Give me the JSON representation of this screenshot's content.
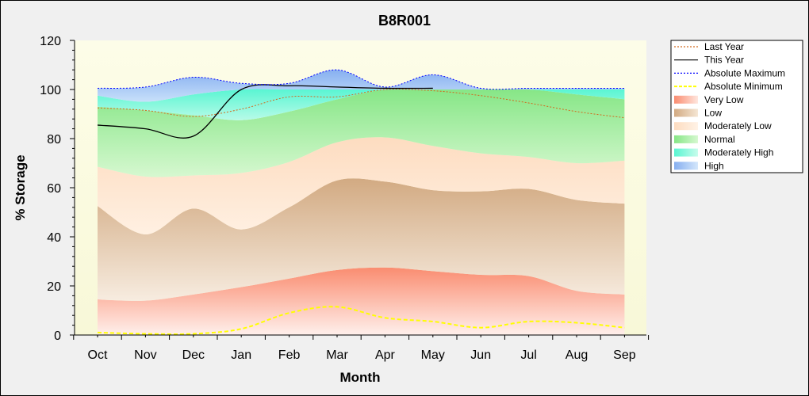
{
  "chart_data": {
    "type": "area",
    "title": "B8R001",
    "xlabel": "Month",
    "ylabel": "% Storage",
    "ylim": [
      0,
      120
    ],
    "yticks": [
      0,
      20,
      40,
      60,
      80,
      100,
      120
    ],
    "categories": [
      "Oct",
      "Nov",
      "Dec",
      "Jan",
      "Feb",
      "Mar",
      "Apr",
      "May",
      "Jun",
      "Jul",
      "Aug",
      "Sep"
    ],
    "grid": false,
    "legend_position": "right",
    "band_boundaries": {
      "x": [
        "Oct",
        "Nov",
        "Dec",
        "Jan",
        "Feb",
        "Mar",
        "Apr",
        "May",
        "Jun",
        "Jul",
        "Aug",
        "Sep"
      ],
      "very_low_top": [
        14.5,
        14,
        16.5,
        19.5,
        23,
        26.5,
        27.5,
        26,
        24.5,
        24,
        18,
        16.5
      ],
      "low_top": [
        52.5,
        41,
        51.5,
        43,
        52,
        63,
        62.5,
        59,
        58.5,
        59.5,
        55,
        53.5
      ],
      "moderately_low_top": [
        68.5,
        64.5,
        65,
        66,
        70.5,
        78.5,
        80.5,
        77,
        74,
        72.5,
        70,
        71
      ],
      "normal_top": [
        93,
        91.5,
        89.5,
        87.5,
        91,
        96,
        100,
        100,
        100,
        100,
        98,
        96
      ],
      "moderately_high_top": [
        97.5,
        95,
        98,
        100,
        100,
        100,
        100,
        100,
        100,
        100,
        100,
        100
      ],
      "high_top": [
        100.5,
        101,
        105,
        102.5,
        102.5,
        108,
        101,
        106,
        100.5,
        100.5,
        100.5,
        100.5
      ]
    },
    "series": [
      {
        "name": "Last Year",
        "x": [
          "Oct",
          "Nov",
          "Dec",
          "Jan",
          "Feb",
          "Mar",
          "Apr",
          "May",
          "Jun",
          "Jul",
          "Aug",
          "Sep"
        ],
        "values": [
          92.5,
          91.5,
          89,
          92,
          97,
          97,
          100,
          99.5,
          97.5,
          94.5,
          91,
          88.5
        ],
        "color": "#d2691e",
        "style": "dotted"
      },
      {
        "name": "This Year",
        "x": [
          "Oct",
          "Nov",
          "Dec",
          "Jan",
          "Feb",
          "Mar",
          "Apr",
          "May"
        ],
        "values": [
          85.5,
          84,
          81,
          100,
          101.5,
          101,
          100.5,
          100.5
        ],
        "color": "#000000",
        "style": "solid"
      },
      {
        "name": "Absolute Maximum",
        "x": [
          "Oct",
          "Nov",
          "Dec",
          "Jan",
          "Feb",
          "Mar",
          "Apr",
          "May",
          "Jun",
          "Jul",
          "Aug",
          "Sep"
        ],
        "values": [
          100.5,
          101,
          105,
          102.5,
          102.5,
          108,
          101,
          106,
          100.5,
          100.5,
          100.5,
          100.5
        ],
        "color": "#0000ff",
        "style": "dotted"
      },
      {
        "name": "Absolute Minimum",
        "x": [
          "Oct",
          "Nov",
          "Dec",
          "Jan",
          "Feb",
          "Mar",
          "Apr",
          "May",
          "Jun",
          "Jul",
          "Aug",
          "Sep"
        ],
        "values": [
          1,
          0.5,
          0.5,
          2.5,
          9,
          11.5,
          7,
          5.5,
          3,
          5.5,
          5,
          3
        ],
        "color": "#ffff00",
        "style": "dashed"
      }
    ],
    "legend": [
      {
        "label": "Last Year",
        "kind": "line",
        "color": "#d2691e",
        "dash": "2,2"
      },
      {
        "label": "This Year",
        "kind": "line",
        "color": "#000000",
        "dash": ""
      },
      {
        "label": "Absolute Maximum",
        "kind": "line",
        "color": "#0000ff",
        "dash": "2,2"
      },
      {
        "label": "Absolute Minimum",
        "kind": "line",
        "color": "#ffff00",
        "dash": "4,2"
      },
      {
        "label": "Very Low",
        "kind": "band",
        "color": "#fa8c70"
      },
      {
        "label": "Low",
        "kind": "band",
        "color": "#d7b48c"
      },
      {
        "label": "Moderately Low",
        "kind": "band",
        "color": "#fde2c8"
      },
      {
        "label": "Normal",
        "kind": "band",
        "color": "#8ee88e"
      },
      {
        "label": "Moderately High",
        "kind": "band",
        "color": "#5ef5d5"
      },
      {
        "label": "High",
        "kind": "band",
        "color": "#8cb4f0"
      }
    ]
  }
}
